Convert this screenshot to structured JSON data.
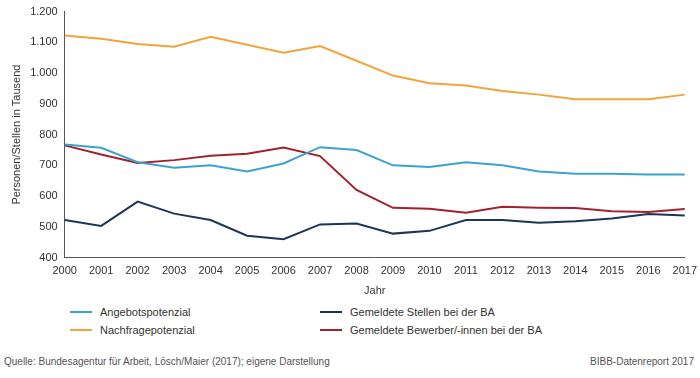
{
  "chart_data": {
    "type": "line",
    "x_label": "Jahr",
    "y_label": "Personen/Stellen in Tausend",
    "source": "Quelle: Bundesagentur für Arbeit, Lösch/Maier (2017); eigene Darstellung",
    "publisher": "BIBB-Datenreport 2017",
    "categories": [
      2000,
      2001,
      2002,
      2003,
      2004,
      2005,
      2006,
      2007,
      2008,
      2009,
      2010,
      2011,
      2012,
      2013,
      2014,
      2015,
      2016,
      2017
    ],
    "series": [
      {
        "name": "Angebotspotenzial",
        "color": "#3ba3cc",
        "values": [
          768,
          757,
          710,
          692,
          700,
          680,
          706,
          759,
          750,
          700,
          695,
          710,
          700,
          680,
          673,
          673,
          670,
          670
        ]
      },
      {
        "name": "Nachfragepotenzial",
        "color": "#f2a33a",
        "values": [
          1122,
          1112,
          1095,
          1086,
          1118,
          1092,
          1066,
          1088,
          1040,
          992,
          967,
          960,
          942,
          930,
          915,
          915,
          915,
          930
        ]
      },
      {
        "name": "Gemeldete Stellen bei der BA",
        "color": "#1d3657",
        "values": [
          522,
          503,
          582,
          543,
          522,
          471,
          460,
          508,
          511,
          478,
          487,
          522,
          522,
          513,
          518,
          527,
          542,
          537
        ]
      },
      {
        "name": "Gemeldete Bewerber/-innen bei der BA",
        "color": "#a3212e",
        "values": [
          765,
          735,
          708,
          717,
          731,
          738,
          758,
          730,
          620,
          562,
          559,
          546,
          565,
          562,
          561,
          551,
          548,
          558
        ]
      }
    ],
    "ylim": [
      400,
      1200
    ],
    "yticks": [
      400,
      500,
      600,
      700,
      800,
      900,
      {
        "value": 1000,
        "label": "1.000"
      },
      {
        "value": 1100,
        "label": "1.100"
      },
      {
        "value": 1200,
        "label": "1.200"
      }
    ],
    "grid": false,
    "legend": "bottom"
  }
}
